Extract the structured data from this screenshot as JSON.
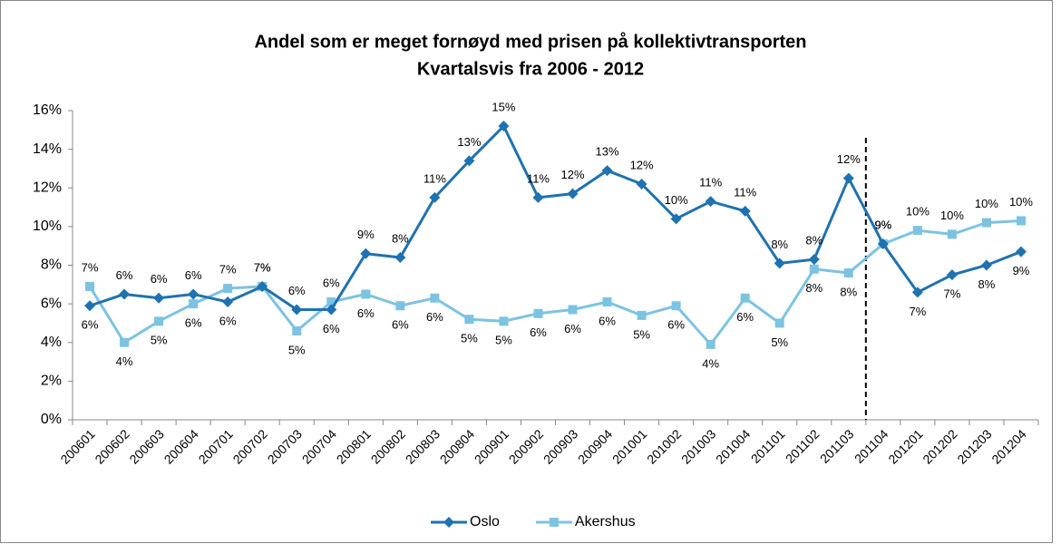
{
  "chart_data": {
    "type": "line",
    "title": "Andel som er meget fornøyd med prisen på kollektivtransporten",
    "subtitle": "Kvartalsvis fra 2006 - 2012",
    "categories": [
      "200601",
      "200602",
      "200603",
      "200604",
      "200701",
      "200702",
      "200703",
      "200704",
      "200801",
      "200802",
      "200803",
      "200804",
      "200901",
      "200902",
      "200903",
      "200904",
      "201001",
      "201002",
      "201003",
      "201004",
      "201101",
      "201102",
      "201103",
      "201104",
      "201201",
      "201202",
      "201203",
      "201204"
    ],
    "series": [
      {
        "name": "Oslo",
        "color": "#1f72b0",
        "marker": "diamond",
        "values": [
          5.9,
          6.5,
          6.3,
          6.5,
          6.1,
          6.9,
          5.7,
          5.7,
          8.6,
          8.4,
          11.5,
          13.4,
          15.2,
          11.5,
          11.7,
          12.9,
          12.2,
          10.4,
          11.3,
          10.8,
          8.1,
          8.3,
          12.5,
          9.1,
          6.6,
          7.5,
          8.0,
          8.7
        ],
        "value_labels": [
          "6%",
          "6%",
          "6%",
          "6%",
          "6%",
          "7%",
          "6%",
          "6%",
          "9%",
          "8%",
          "11%",
          "13%",
          "15%",
          "11%",
          "12%",
          "13%",
          "12%",
          "10%",
          "11%",
          "11%",
          "8%",
          "8%",
          "12%",
          "9%",
          "7%",
          "7%",
          "8%",
          "9%"
        ]
      },
      {
        "name": "Akershus",
        "color": "#7cc3e2",
        "marker": "square",
        "values": [
          6.9,
          4.0,
          5.1,
          6.0,
          6.8,
          6.9,
          4.6,
          6.1,
          6.5,
          5.9,
          6.3,
          5.2,
          5.1,
          5.5,
          5.7,
          6.1,
          5.4,
          5.9,
          3.9,
          6.3,
          5.0,
          7.8,
          7.6,
          9.1,
          9.8,
          9.6,
          10.2,
          10.3
        ],
        "value_labels": [
          "7%",
          "4%",
          "5%",
          "6%",
          "7%",
          "7%",
          "5%",
          "6%",
          "6%",
          "6%",
          "6%",
          "5%",
          "5%",
          "6%",
          "6%",
          "6%",
          "5%",
          "6%",
          "4%",
          "6%",
          "5%",
          "8%",
          "8%",
          "9%",
          "10%",
          "10%",
          "10%",
          "10%"
        ]
      }
    ],
    "ylim": [
      0,
      16
    ],
    "yticks": [
      {
        "value": 0,
        "label": "0%"
      },
      {
        "value": 2,
        "label": "2%"
      },
      {
        "value": 4,
        "label": "4%"
      },
      {
        "value": 6,
        "label": "6%"
      },
      {
        "value": 8,
        "label": "8%"
      },
      {
        "value": 10,
        "label": "10%"
      },
      {
        "value": 12,
        "label": "12%"
      },
      {
        "value": 14,
        "label": "14%"
      },
      {
        "value": 16,
        "label": "16%"
      }
    ],
    "grid": false,
    "legend": "bottom"
  }
}
